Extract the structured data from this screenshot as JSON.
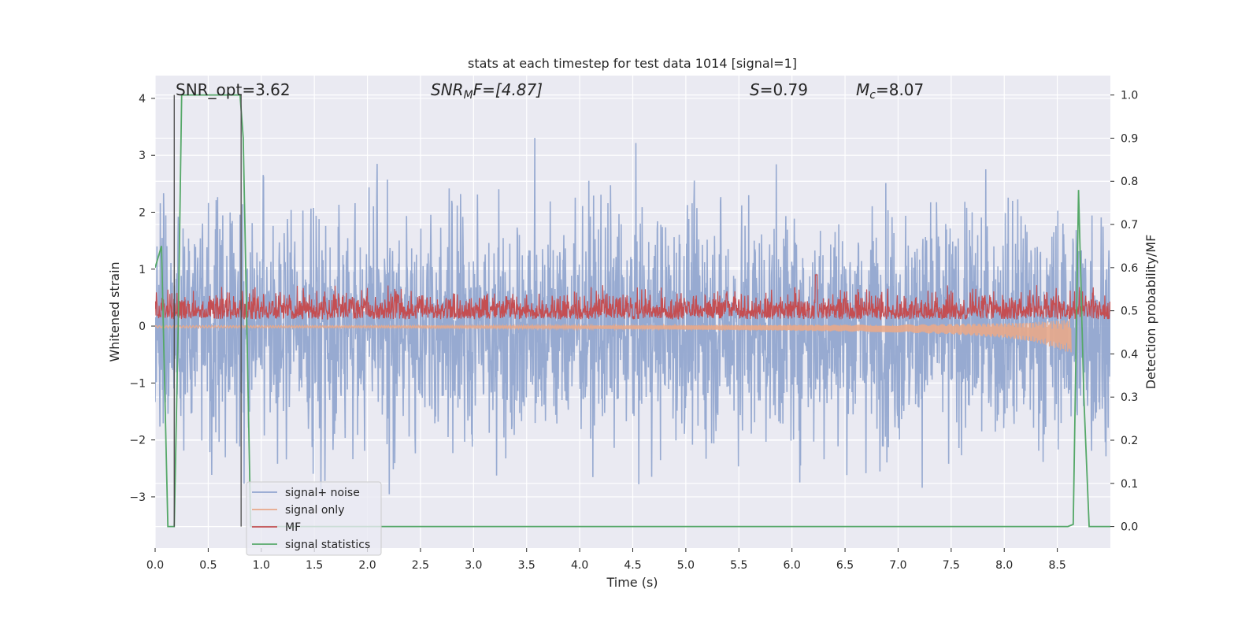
{
  "chart_data": {
    "type": "line",
    "title": "stats at each timestep for test data 1014 [signal=1]",
    "xlabel": "Time (s)",
    "ylabel": "Whitened strain",
    "ylabel_right": "Detection probability/MF",
    "xlim": [
      0.0,
      9.0
    ],
    "ylim": [
      -3.9,
      4.4
    ],
    "ylim_right": [
      -0.05,
      1.045
    ],
    "x_ticks": [
      "0.0",
      "0.5",
      "1.0",
      "1.5",
      "2.0",
      "2.5",
      "3.0",
      "3.5",
      "4.0",
      "4.5",
      "5.0",
      "5.5",
      "6.0",
      "6.5",
      "7.0",
      "7.5",
      "8.0",
      "8.5"
    ],
    "y_ticks": [
      "−3",
      "−2",
      "−1",
      "0",
      "1",
      "2",
      "3",
      "4"
    ],
    "y_ticks_right": [
      "0.0",
      "0.1",
      "0.2",
      "0.3",
      "0.4",
      "0.5",
      "0.6",
      "0.7",
      "0.8",
      "0.9",
      "1.0"
    ],
    "grid": true,
    "legend_position": "lower-left",
    "annotations": {
      "snr_opt": "SNR_opt=3.62",
      "snr_mf_main": "SNR",
      "snr_mf_sub": "M",
      "snr_mf_tail": "F=[4.87]",
      "s_main": "S",
      "s_tail": "=0.79",
      "mc_main": "M",
      "mc_sub": "c",
      "mc_tail": "=8.07"
    },
    "vertical_markers": [
      0.18,
      0.81
    ],
    "series": [
      {
        "name": "signal+ noise",
        "color": "#92a6cf",
        "kind": "noise",
        "amplitude_envelope": [
          -3.6,
          4.0
        ]
      },
      {
        "name": "signal only",
        "color": "#e8a88a",
        "kind": "chirp",
        "x": [
          0.0,
          2.0,
          4.0,
          6.0,
          7.0,
          7.5,
          8.0,
          8.3,
          8.5,
          8.63
        ],
        "envelope": [
          0.02,
          0.02,
          0.03,
          0.05,
          0.07,
          0.09,
          0.13,
          0.18,
          0.25,
          0.3
        ]
      },
      {
        "name": "MF",
        "color": "#c44e52",
        "kind": "mf",
        "baseline": 0.2,
        "spread": [
          0.0,
          0.9
        ]
      },
      {
        "name": "signal statistics",
        "color": "#55a868",
        "axis": "right",
        "x": [
          0.0,
          0.06,
          0.12,
          0.18,
          0.22,
          0.25,
          0.8,
          0.83,
          0.9,
          8.6,
          8.65,
          8.7,
          8.75,
          8.8,
          9.0
        ],
        "y": [
          0.6,
          0.65,
          0.0,
          0.0,
          0.5,
          1.0,
          1.0,
          0.9,
          0.0,
          0.0,
          0.005,
          0.78,
          0.3,
          0.0,
          0.0
        ]
      }
    ]
  }
}
